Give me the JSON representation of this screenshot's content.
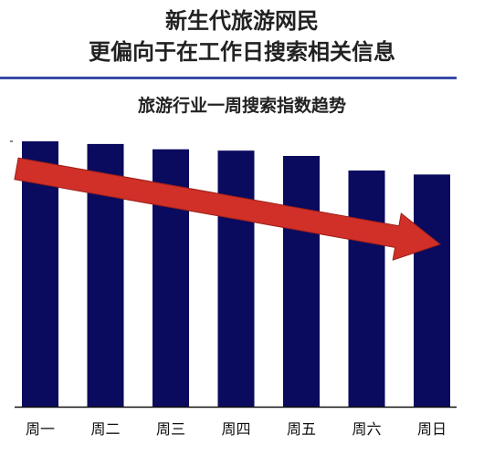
{
  "headline": {
    "line1": "新生代旅游网民",
    "line2": "更偏向于在工作日搜索相关信息"
  },
  "colors": {
    "bar": "#0a0a5e",
    "arrow": "#d03028",
    "axis": "#111111",
    "rule": "#3a4aa8"
  },
  "chart_data": {
    "type": "bar",
    "title": "旅游行业一周搜索指数趋势",
    "xlabel": "",
    "ylabel": "",
    "categories": [
      "周一",
      "周二",
      "周三",
      "周四",
      "周五",
      "周六",
      "周日"
    ],
    "values": [
      100,
      99,
      97,
      96.5,
      94.5,
      89,
      87.5
    ],
    "ylim": [
      0,
      100
    ],
    "grid": false,
    "legend": "none",
    "annotations": [
      {
        "type": "arrow",
        "meaning": "downward trend",
        "from_category": "周一",
        "to_category": "周日"
      }
    ]
  }
}
